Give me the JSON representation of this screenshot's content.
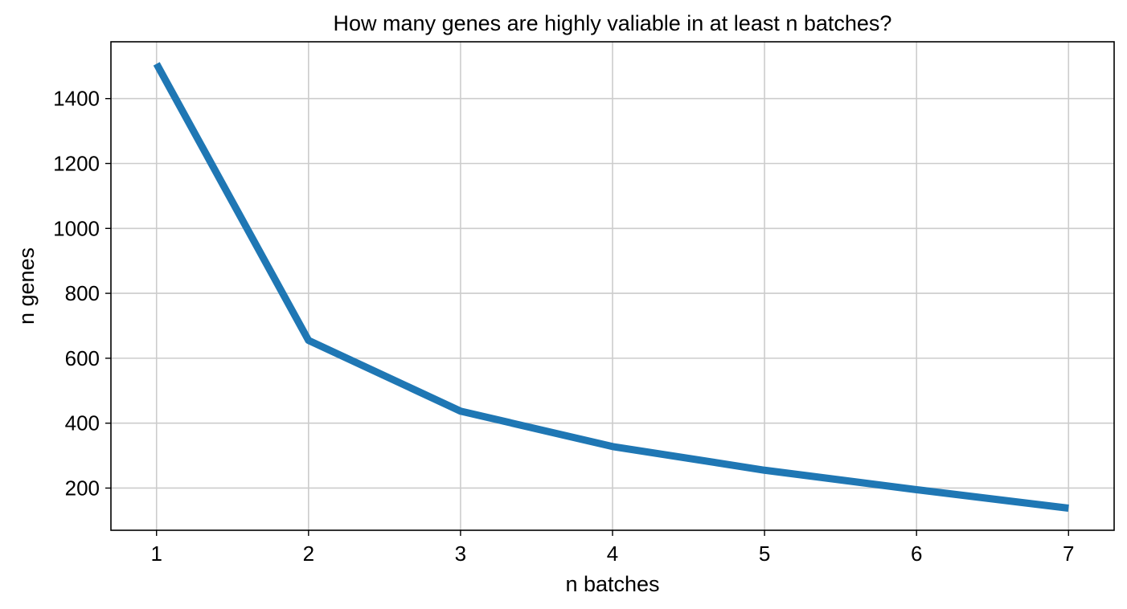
{
  "chart_data": {
    "type": "line",
    "title": "How many genes are highly valiable in at least n batches?",
    "xlabel": "n batches",
    "ylabel": "n genes",
    "x": [
      1,
      2,
      3,
      4,
      5,
      6,
      7
    ],
    "series": [
      {
        "values": [
          1507,
          655,
          437,
          328,
          255,
          195,
          138
        ],
        "color": "#1f77b4"
      }
    ],
    "xticks": [
      "1",
      "2",
      "3",
      "4",
      "5",
      "6",
      "7"
    ],
    "yticks": [
      "200",
      "400",
      "600",
      "800",
      "1000",
      "1200",
      "1400"
    ],
    "xlim": [
      0.7,
      7.3
    ],
    "ylim": [
      70,
      1575
    ],
    "grid": true,
    "legend": "none"
  }
}
